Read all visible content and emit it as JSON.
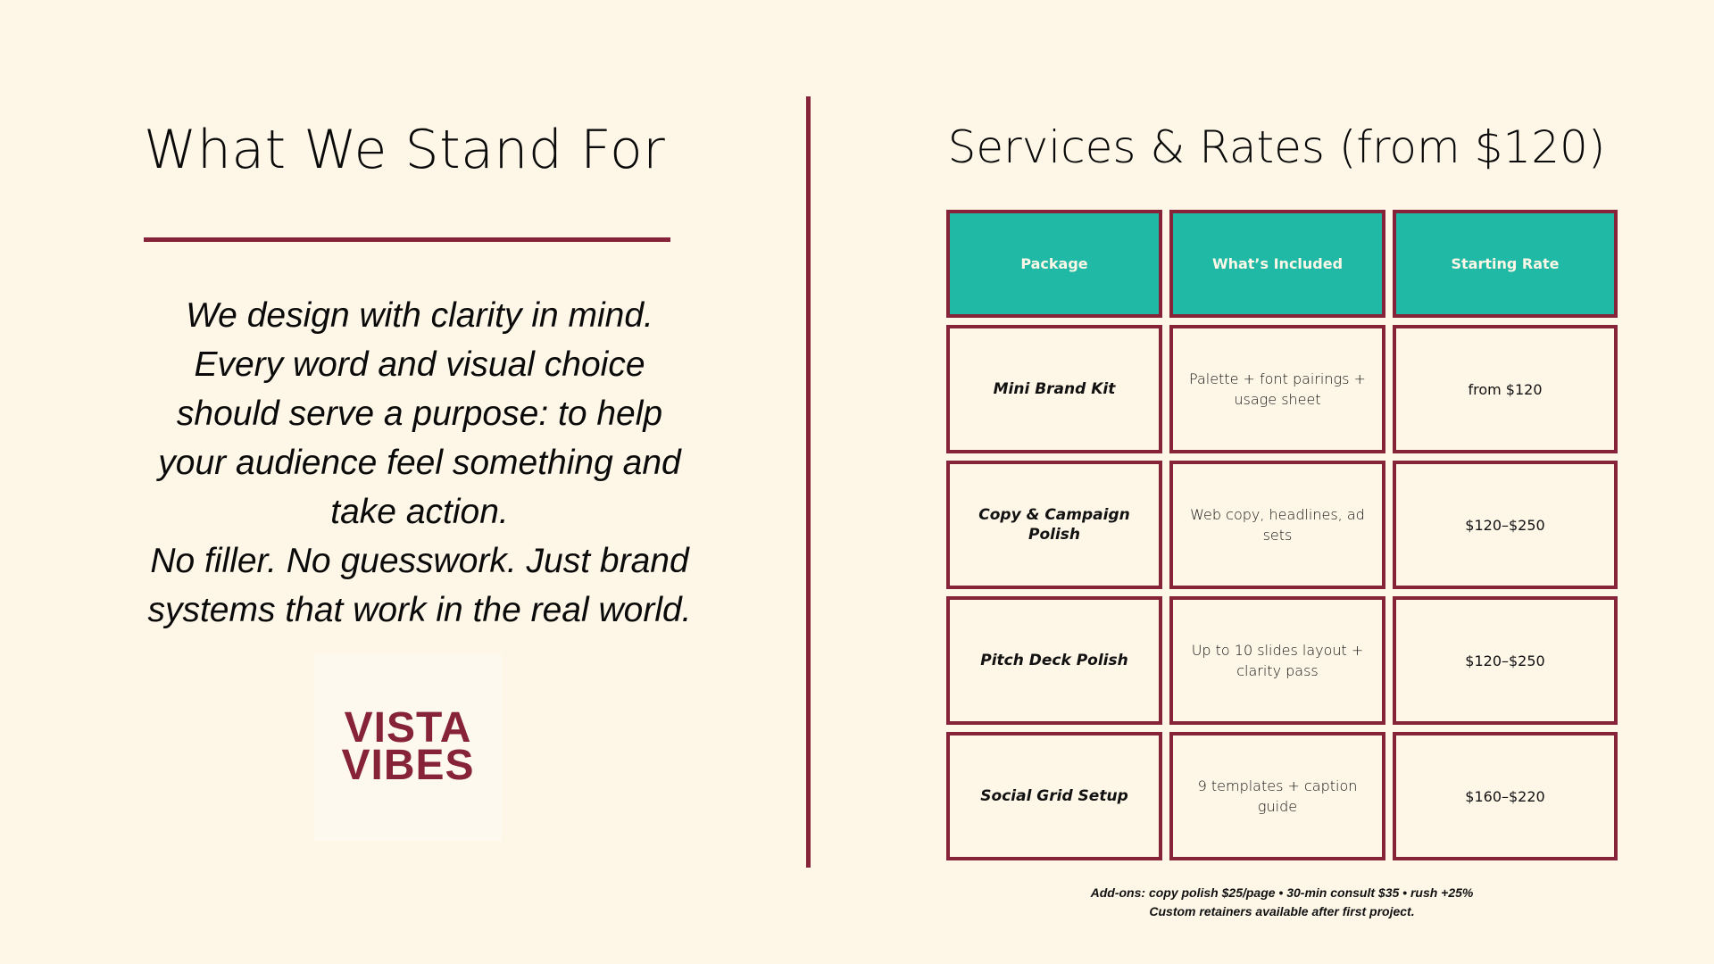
{
  "left": {
    "title": "What We Stand For",
    "mission_lines": [
      "We design with clarity in mind.",
      "Every word and visual choice should serve a purpose: to help your audience feel something and take action.",
      "No filler. No guesswork. Just brand systems that work in the real world."
    ],
    "logo": {
      "line1": "VISTA",
      "line2": "VIBES"
    }
  },
  "right": {
    "title": "Services & Rates (from $120)",
    "table": {
      "headers": [
        "Package",
        "What’s Included",
        "Starting Rate"
      ],
      "rows": [
        {
          "package": "Mini Brand Kit",
          "included": "Palette + font pairings + usage sheet",
          "rate": "from $120"
        },
        {
          "package": "Copy & Campaign Polish",
          "included": "Web copy, headlines, ad sets",
          "rate": "$120–$250"
        },
        {
          "package": "Pitch Deck Polish",
          "included": "Up to 10 slides layout + clarity pass",
          "rate": "$120–$250"
        },
        {
          "package": "Social Grid Setup",
          "included": "9 templates + caption guide",
          "rate": "$160–$220"
        }
      ]
    },
    "footnote": {
      "line1": "Add-ons: copy polish $25/page • 30-min consult $35 • rush +25%",
      "line2": "Custom retainers available after first project."
    }
  },
  "colors": {
    "background": "#FEF7E8",
    "accent_maroon": "#862338",
    "header_teal": "#20B9A5",
    "text": "#0A0A0A"
  }
}
